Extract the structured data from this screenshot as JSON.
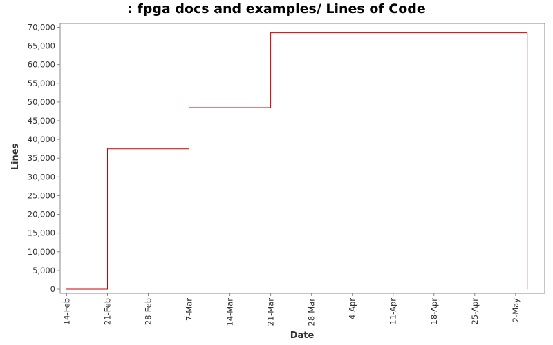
{
  "chart_data": {
    "type": "line",
    "title": ": fpga docs and examples/ Lines of Code",
    "xlabel": "Date",
    "ylabel": "Lines",
    "x_tick_labels": [
      "14-Feb",
      "21-Feb",
      "28-Feb",
      "7-Mar",
      "14-Mar",
      "21-Mar",
      "28-Mar",
      "4-Apr",
      "11-Apr",
      "18-Apr",
      "25-Apr",
      "2-May"
    ],
    "y_tick_labels": [
      "0",
      "5,000",
      "10,000",
      "15,000",
      "20,000",
      "25,000",
      "30,000",
      "35,000",
      "40,000",
      "45,000",
      "50,000",
      "55,000",
      "60,000",
      "65,000",
      "70,000"
    ],
    "ylim": [
      0,
      71000
    ],
    "xlim": [
      "2008-02-13",
      "2008-05-06"
    ],
    "grid": false,
    "line_style": "step",
    "series": [
      {
        "color": "#cc0000",
        "x": [
          "2008-02-14",
          "2008-02-21",
          "2008-03-06",
          "2008-03-20",
          "2008-05-03"
        ],
        "y": [
          0,
          37500,
          48500,
          68500,
          0
        ]
      }
    ]
  }
}
